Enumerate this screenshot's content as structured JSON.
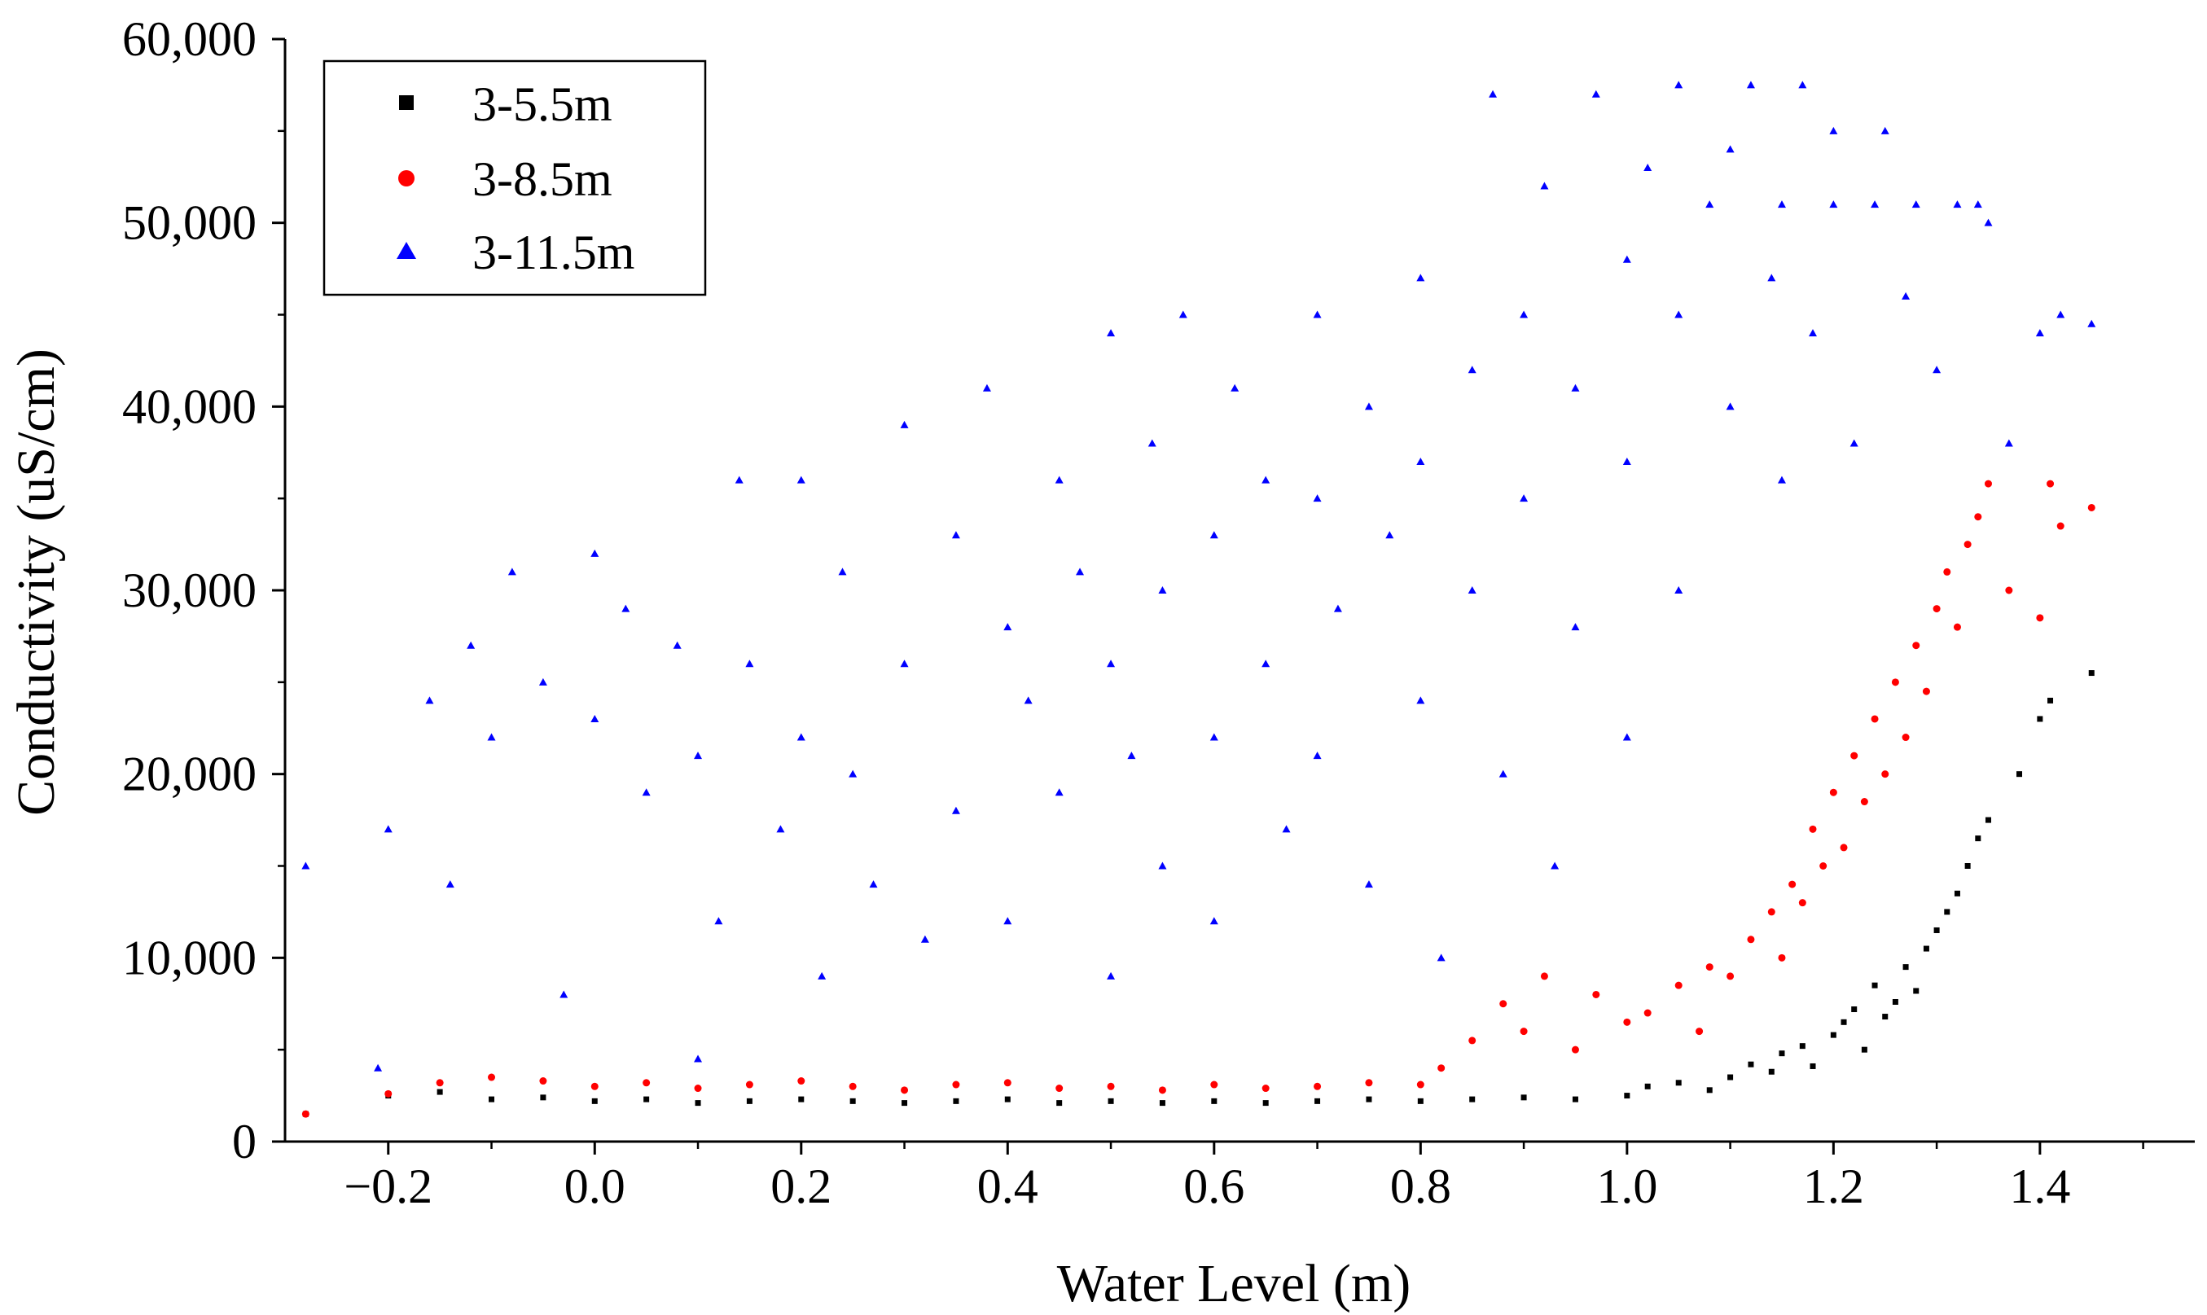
{
  "chart_data": {
    "type": "scatter",
    "title": "",
    "xlabel": "Water Level (m)",
    "ylabel": "Conductivity (uS/cm)",
    "xlim": [
      -0.3,
      1.55
    ],
    "ylim": [
      0,
      60000
    ],
    "xticks": [
      -0.2,
      0.0,
      0.2,
      0.4,
      0.6,
      0.8,
      1.0,
      1.2,
      1.4
    ],
    "xtick_labels": [
      "−0.2",
      "0.0",
      "0.2",
      "0.4",
      "0.6",
      "0.8",
      "1.0",
      "1.2",
      "1.4"
    ],
    "yticks": [
      0,
      10000,
      20000,
      30000,
      40000,
      50000,
      60000
    ],
    "ytick_labels": [
      "0",
      "10,000",
      "20,000",
      "30,000",
      "40,000",
      "50,000",
      "60,000"
    ],
    "legend_position": "top-left",
    "series": [
      {
        "name": "3-5.5m",
        "marker": "square",
        "color": "#000000",
        "points": [
          [
            -0.28,
            1500
          ],
          [
            -0.2,
            2500
          ],
          [
            -0.15,
            2700
          ],
          [
            -0.1,
            2300
          ],
          [
            -0.05,
            2400
          ],
          [
            0.0,
            2200
          ],
          [
            0.05,
            2300
          ],
          [
            0.1,
            2100
          ],
          [
            0.15,
            2200
          ],
          [
            0.2,
            2300
          ],
          [
            0.25,
            2200
          ],
          [
            0.3,
            2100
          ],
          [
            0.35,
            2200
          ],
          [
            0.4,
            2300
          ],
          [
            0.45,
            2100
          ],
          [
            0.5,
            2200
          ],
          [
            0.55,
            2100
          ],
          [
            0.6,
            2200
          ],
          [
            0.65,
            2100
          ],
          [
            0.7,
            2200
          ],
          [
            0.75,
            2300
          ],
          [
            0.8,
            2200
          ],
          [
            0.85,
            2300
          ],
          [
            0.9,
            2400
          ],
          [
            0.95,
            2300
          ],
          [
            1.0,
            2500
          ],
          [
            1.02,
            3000
          ],
          [
            1.05,
            3200
          ],
          [
            1.08,
            2800
          ],
          [
            1.1,
            3500
          ],
          [
            1.12,
            4200
          ],
          [
            1.14,
            3800
          ],
          [
            1.15,
            4800
          ],
          [
            1.17,
            5200
          ],
          [
            1.18,
            4100
          ],
          [
            1.2,
            5800
          ],
          [
            1.21,
            6500
          ],
          [
            1.22,
            7200
          ],
          [
            1.23,
            5000
          ],
          [
            1.24,
            8500
          ],
          [
            1.25,
            6800
          ],
          [
            1.26,
            7600
          ],
          [
            1.27,
            9500
          ],
          [
            1.28,
            8200
          ],
          [
            1.29,
            10500
          ],
          [
            1.3,
            11500
          ],
          [
            1.31,
            12500
          ],
          [
            1.32,
            13500
          ],
          [
            1.33,
            15000
          ],
          [
            1.34,
            16500
          ],
          [
            1.35,
            17500
          ],
          [
            1.38,
            20000
          ],
          [
            1.4,
            23000
          ],
          [
            1.41,
            24000
          ],
          [
            1.45,
            25500
          ]
        ]
      },
      {
        "name": "3-8.5m",
        "marker": "circle",
        "color": "#ff0000",
        "points": [
          [
            -0.28,
            1500
          ],
          [
            -0.2,
            2600
          ],
          [
            -0.15,
            3200
          ],
          [
            -0.1,
            3500
          ],
          [
            -0.05,
            3300
          ],
          [
            0.0,
            3000
          ],
          [
            0.05,
            3200
          ],
          [
            0.1,
            2900
          ],
          [
            0.15,
            3100
          ],
          [
            0.2,
            3300
          ],
          [
            0.25,
            3000
          ],
          [
            0.3,
            2800
          ],
          [
            0.35,
            3100
          ],
          [
            0.4,
            3200
          ],
          [
            0.45,
            2900
          ],
          [
            0.5,
            3000
          ],
          [
            0.55,
            2800
          ],
          [
            0.6,
            3100
          ],
          [
            0.65,
            2900
          ],
          [
            0.7,
            3000
          ],
          [
            0.75,
            3200
          ],
          [
            0.8,
            3100
          ],
          [
            0.82,
            4000
          ],
          [
            0.85,
            5500
          ],
          [
            0.88,
            7500
          ],
          [
            0.9,
            6000
          ],
          [
            0.92,
            9000
          ],
          [
            0.95,
            5000
          ],
          [
            0.97,
            8000
          ],
          [
            1.0,
            6500
          ],
          [
            1.02,
            7000
          ],
          [
            1.05,
            8500
          ],
          [
            1.07,
            6000
          ],
          [
            1.08,
            9500
          ],
          [
            1.1,
            9000
          ],
          [
            1.12,
            11000
          ],
          [
            1.14,
            12500
          ],
          [
            1.15,
            10000
          ],
          [
            1.16,
            14000
          ],
          [
            1.17,
            13000
          ],
          [
            1.18,
            17000
          ],
          [
            1.19,
            15000
          ],
          [
            1.2,
            19000
          ],
          [
            1.21,
            16000
          ],
          [
            1.22,
            21000
          ],
          [
            1.23,
            18500
          ],
          [
            1.24,
            23000
          ],
          [
            1.25,
            20000
          ],
          [
            1.26,
            25000
          ],
          [
            1.27,
            22000
          ],
          [
            1.28,
            27000
          ],
          [
            1.29,
            24500
          ],
          [
            1.3,
            29000
          ],
          [
            1.31,
            31000
          ],
          [
            1.32,
            28000
          ],
          [
            1.33,
            32500
          ],
          [
            1.34,
            34000
          ],
          [
            1.35,
            35800
          ],
          [
            1.37,
            30000
          ],
          [
            1.4,
            28500
          ],
          [
            1.41,
            35800
          ],
          [
            1.42,
            33500
          ],
          [
            1.45,
            34500
          ]
        ]
      },
      {
        "name": "3-11.5m",
        "marker": "triangle",
        "color": "#0000ff",
        "points": [
          [
            -0.28,
            15000
          ],
          [
            -0.21,
            4000
          ],
          [
            -0.2,
            17000
          ],
          [
            -0.16,
            24000
          ],
          [
            -0.14,
            14000
          ],
          [
            -0.12,
            27000
          ],
          [
            -0.1,
            22000
          ],
          [
            -0.08,
            31000
          ],
          [
            -0.05,
            25000
          ],
          [
            -0.03,
            8000
          ],
          [
            0.0,
            32000
          ],
          [
            0.0,
            23000
          ],
          [
            0.03,
            29000
          ],
          [
            0.05,
            19000
          ],
          [
            0.08,
            27000
          ],
          [
            0.1,
            21000
          ],
          [
            0.1,
            4500
          ],
          [
            0.12,
            12000
          ],
          [
            0.14,
            36000
          ],
          [
            0.15,
            26000
          ],
          [
            0.18,
            17000
          ],
          [
            0.2,
            36000
          ],
          [
            0.2,
            22000
          ],
          [
            0.22,
            9000
          ],
          [
            0.24,
            31000
          ],
          [
            0.25,
            20000
          ],
          [
            0.27,
            14000
          ],
          [
            0.3,
            39000
          ],
          [
            0.3,
            26000
          ],
          [
            0.32,
            11000
          ],
          [
            0.35,
            33000
          ],
          [
            0.35,
            18000
          ],
          [
            0.38,
            41000
          ],
          [
            0.4,
            28000
          ],
          [
            0.4,
            12000
          ],
          [
            0.42,
            24000
          ],
          [
            0.45,
            36000
          ],
          [
            0.45,
            19000
          ],
          [
            0.47,
            31000
          ],
          [
            0.5,
            44000
          ],
          [
            0.5,
            26000
          ],
          [
            0.5,
            9000
          ],
          [
            0.52,
            21000
          ],
          [
            0.54,
            38000
          ],
          [
            0.55,
            30000
          ],
          [
            0.55,
            15000
          ],
          [
            0.57,
            45000
          ],
          [
            0.6,
            33000
          ],
          [
            0.6,
            22000
          ],
          [
            0.6,
            12000
          ],
          [
            0.62,
            41000
          ],
          [
            0.65,
            36000
          ],
          [
            0.65,
            26000
          ],
          [
            0.67,
            17000
          ],
          [
            0.7,
            45000
          ],
          [
            0.7,
            35000
          ],
          [
            0.7,
            21000
          ],
          [
            0.72,
            29000
          ],
          [
            0.75,
            40000
          ],
          [
            0.75,
            14000
          ],
          [
            0.77,
            33000
          ],
          [
            0.8,
            47000
          ],
          [
            0.8,
            37000
          ],
          [
            0.8,
            24000
          ],
          [
            0.82,
            10000
          ],
          [
            0.85,
            42000
          ],
          [
            0.85,
            30000
          ],
          [
            0.87,
            57000
          ],
          [
            0.88,
            20000
          ],
          [
            0.9,
            45000
          ],
          [
            0.9,
            35000
          ],
          [
            0.92,
            52000
          ],
          [
            0.93,
            15000
          ],
          [
            0.95,
            41000
          ],
          [
            0.95,
            28000
          ],
          [
            0.97,
            57000
          ],
          [
            1.0,
            48000
          ],
          [
            1.0,
            37000
          ],
          [
            1.0,
            22000
          ],
          [
            1.02,
            53000
          ],
          [
            1.05,
            57500
          ],
          [
            1.05,
            45000
          ],
          [
            1.05,
            30000
          ],
          [
            1.08,
            51000
          ],
          [
            1.1,
            54000
          ],
          [
            1.1,
            40000
          ],
          [
            1.12,
            57500
          ],
          [
            1.14,
            47000
          ],
          [
            1.15,
            51000
          ],
          [
            1.15,
            36000
          ],
          [
            1.17,
            57500
          ],
          [
            1.18,
            44000
          ],
          [
            1.2,
            51000
          ],
          [
            1.2,
            55000
          ],
          [
            1.22,
            38000
          ],
          [
            1.24,
            51000
          ],
          [
            1.25,
            55000
          ],
          [
            1.27,
            46000
          ],
          [
            1.28,
            51000
          ],
          [
            1.3,
            42000
          ],
          [
            1.32,
            51000
          ],
          [
            1.34,
            51000
          ],
          [
            1.35,
            50000
          ],
          [
            1.37,
            38000
          ],
          [
            1.4,
            44000
          ],
          [
            1.42,
            45000
          ],
          [
            1.45,
            44500
          ]
        ]
      }
    ]
  }
}
